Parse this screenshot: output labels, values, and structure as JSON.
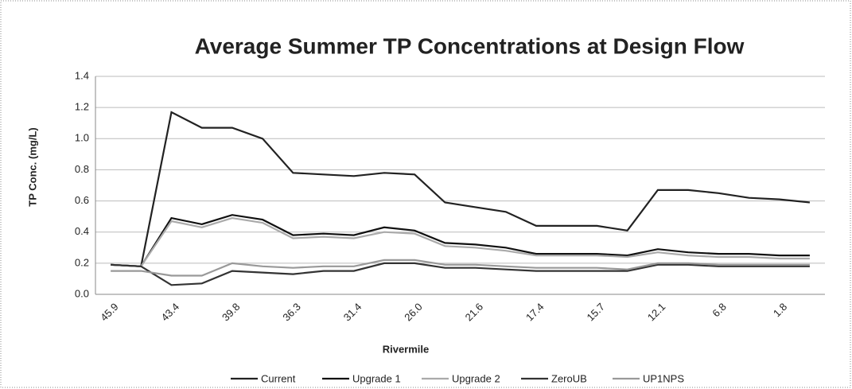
{
  "chart_data": {
    "type": "line",
    "title": "Average Summer TP Concentrations at Design Flow",
    "x_label": "Rivermile",
    "y_label": "TP Conc. (mg/L)",
    "categories": [
      "45.9",
      null,
      "43.4",
      null,
      "39.8",
      null,
      "36.3",
      null,
      "31.4",
      null,
      "26.0",
      null,
      "21.6",
      null,
      "17.4",
      null,
      "15.7",
      null,
      "12.1",
      null,
      "6.8",
      null,
      "1.8",
      null
    ],
    "series": [
      {
        "name": "Current",
        "color": "#222222",
        "values": [
          0.19,
          0.18,
          1.17,
          1.07,
          1.07,
          1.0,
          0.78,
          0.77,
          0.76,
          0.78,
          0.77,
          0.59,
          0.56,
          0.53,
          0.44,
          0.44,
          0.44,
          0.41,
          0.67,
          0.67,
          0.65,
          0.62,
          0.61,
          0.59
        ]
      },
      {
        "name": "Upgrade 1",
        "color": "#111111",
        "values": [
          0.19,
          0.18,
          0.49,
          0.45,
          0.51,
          0.48,
          0.38,
          0.39,
          0.38,
          0.43,
          0.41,
          0.33,
          0.32,
          0.3,
          0.26,
          0.26,
          0.26,
          0.25,
          0.29,
          0.27,
          0.26,
          0.26,
          0.25,
          0.25
        ]
      },
      {
        "name": "Upgrade 2",
        "color": "#aaaaaa",
        "values": [
          0.19,
          0.18,
          0.47,
          0.43,
          0.49,
          0.46,
          0.36,
          0.37,
          0.36,
          0.4,
          0.39,
          0.31,
          0.3,
          0.28,
          0.25,
          0.25,
          0.25,
          0.24,
          0.27,
          0.25,
          0.24,
          0.24,
          0.23,
          0.23
        ]
      },
      {
        "name": "ZeroUB",
        "color": "#333333",
        "values": [
          0.19,
          0.18,
          0.06,
          0.07,
          0.15,
          0.14,
          0.13,
          0.15,
          0.15,
          0.2,
          0.2,
          0.17,
          0.17,
          0.16,
          0.15,
          0.15,
          0.15,
          0.15,
          0.19,
          0.19,
          0.18,
          0.18,
          0.18,
          0.18
        ]
      },
      {
        "name": "UP1NPS",
        "color": "#999999",
        "values": [
          0.15,
          0.15,
          0.12,
          0.12,
          0.2,
          0.18,
          0.17,
          0.18,
          0.18,
          0.22,
          0.22,
          0.19,
          0.19,
          0.18,
          0.17,
          0.17,
          0.17,
          0.16,
          0.2,
          0.2,
          0.19,
          0.19,
          0.19,
          0.19
        ]
      }
    ],
    "ylim": [
      0,
      1.4
    ],
    "yticks": [
      {
        "value": 0,
        "label": "0.0"
      },
      0.2,
      0.4,
      0.6,
      0.8,
      {
        "value": 1,
        "label": "1.0"
      },
      1.2,
      1.4
    ],
    "grid": true,
    "legend": "bottom"
  }
}
